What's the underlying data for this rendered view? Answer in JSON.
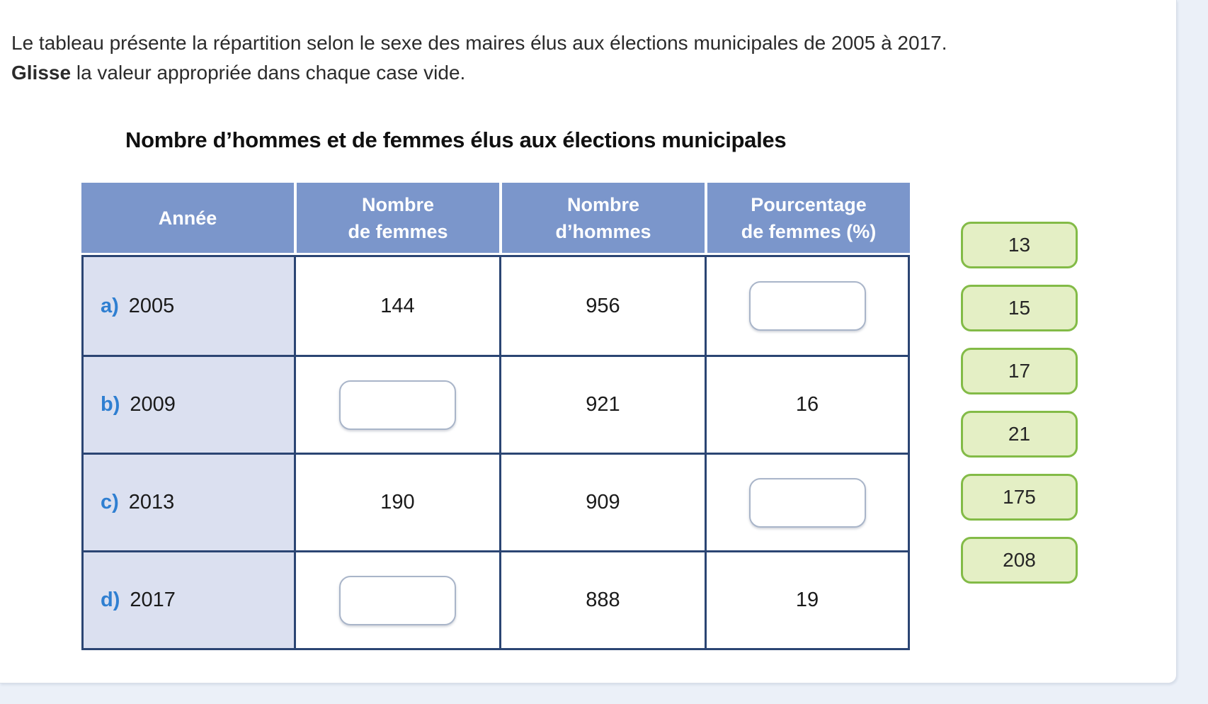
{
  "colors": {
    "page_background": "#ebf0f8",
    "card_background": "#ffffff",
    "header_background": "#7b96cb",
    "header_text": "#ffffff",
    "row_label_background": "#dbe0f0",
    "table_border": "#2b4573",
    "row_letter_accent": "#2f7fd1",
    "chip_background": "#e4efc5",
    "chip_border": "#83bb47",
    "dropzone_border": "#a9b5c9"
  },
  "instructions": {
    "line1": "Le tableau présente la répartition selon le sexe des maires élus aux élections municipales de 2005 à 2017.",
    "line2_bold": "Glisse",
    "line2_rest": " la valeur appropriée dans chaque case vide."
  },
  "table": {
    "title": "Nombre d’hommes et de femmes élus aux élections municipales",
    "headers": [
      {
        "line1": "Année",
        "line2": ""
      },
      {
        "line1": "Nombre",
        "line2": "de femmes"
      },
      {
        "line1": "Nombre",
        "line2": "d’hommes"
      },
      {
        "line1": "Pourcentage",
        "line2": "de femmes (%)"
      }
    ],
    "rows": [
      {
        "label": "a)",
        "year": "2005",
        "nombre_femmes": "144",
        "nombre_hommes": "956",
        "pourcentage_femmes": null,
        "empty_cell": "pourcentage_femmes"
      },
      {
        "label": "b)",
        "year": "2009",
        "nombre_femmes": null,
        "nombre_hommes": "921",
        "pourcentage_femmes": "16",
        "empty_cell": "nombre_femmes"
      },
      {
        "label": "c)",
        "year": "2013",
        "nombre_femmes": "190",
        "nombre_hommes": "909",
        "pourcentage_femmes": null,
        "empty_cell": "pourcentage_femmes"
      },
      {
        "label": "d)",
        "year": "2017",
        "nombre_femmes": null,
        "nombre_hommes": "888",
        "pourcentage_femmes": "19",
        "empty_cell": "nombre_femmes"
      }
    ]
  },
  "chips": {
    "values": [
      "13",
      "15",
      "17",
      "21",
      "175",
      "208"
    ]
  }
}
